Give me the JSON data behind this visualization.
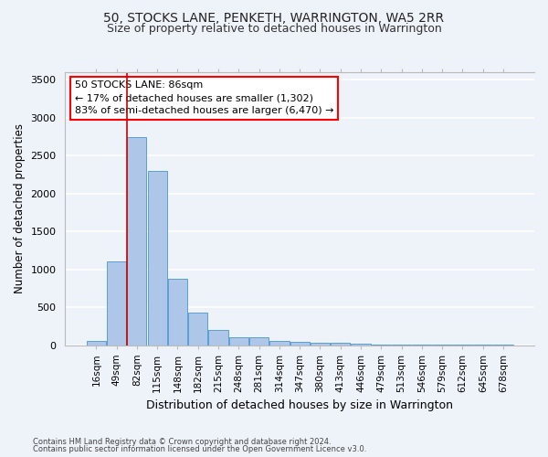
{
  "title1": "50, STOCKS LANE, PENKETH, WARRINGTON, WA5 2RR",
  "title2": "Size of property relative to detached houses in Warrington",
  "xlabel": "Distribution of detached houses by size in Warrington",
  "ylabel": "Number of detached properties",
  "categories": [
    "16sqm",
    "49sqm",
    "82sqm",
    "115sqm",
    "148sqm",
    "182sqm",
    "215sqm",
    "248sqm",
    "281sqm",
    "314sqm",
    "347sqm",
    "380sqm",
    "413sqm",
    "446sqm",
    "479sqm",
    "513sqm",
    "546sqm",
    "579sqm",
    "612sqm",
    "645sqm",
    "678sqm"
  ],
  "values": [
    50,
    1100,
    2750,
    2300,
    880,
    430,
    200,
    105,
    100,
    55,
    40,
    35,
    30,
    15,
    10,
    5,
    5,
    3,
    2,
    2,
    2
  ],
  "bar_color": "#aec6e8",
  "bar_edge_color": "#5a9fd4",
  "red_line_color": "#cc0000",
  "annotation_line1": "50 STOCKS LANE: 86sqm",
  "annotation_line2": "← 17% of detached houses are smaller (1,302)",
  "annotation_line3": "83% of semi-detached houses are larger (6,470) →",
  "footer1": "Contains HM Land Registry data © Crown copyright and database right 2024.",
  "footer2": "Contains public sector information licensed under the Open Government Licence v3.0.",
  "ylim": [
    0,
    3600
  ],
  "yticks": [
    0,
    500,
    1000,
    1500,
    2000,
    2500,
    3000,
    3500
  ],
  "bg_color": "#eef2f9",
  "grid_color": "#ffffff",
  "title1_fontsize": 10,
  "title2_fontsize": 9,
  "tick_fontsize": 7.5,
  "ylabel_fontsize": 8.5,
  "xlabel_fontsize": 9,
  "annotation_fontsize": 8,
  "footer_fontsize": 6,
  "red_line_bin": 1.5
}
